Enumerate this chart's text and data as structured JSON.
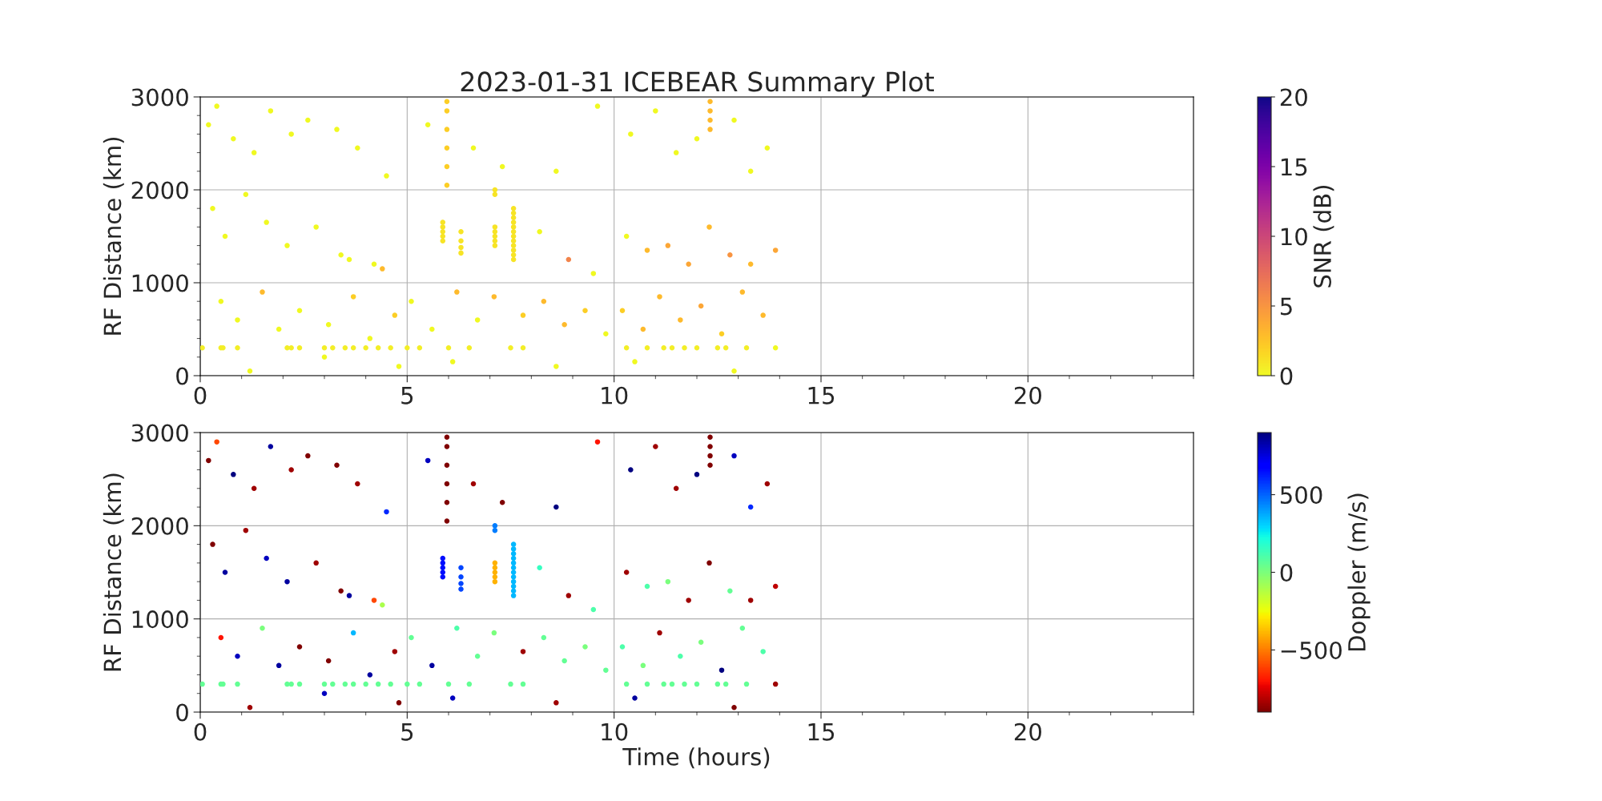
{
  "chart_data": [
    {
      "type": "scatter",
      "title": "2023-01-31 ICEBEAR Summary Plot",
      "ylabel": "RF Distance (km)",
      "clabel": "SNR (dB)",
      "clim": [
        0,
        20
      ],
      "cticks": [
        0,
        5,
        10,
        15,
        20
      ],
      "xlim": [
        0,
        24
      ],
      "xticks": [
        0,
        5,
        10,
        15,
        20
      ],
      "ylim": [
        0,
        3000
      ],
      "yticks": [
        0,
        1000,
        2000,
        3000
      ],
      "grid": true,
      "legend": false,
      "marker": "circle",
      "series": [
        {
          "x": [
            5.96,
            5.96,
            5.96,
            5.96,
            5.96,
            5.96,
            12.32,
            12.32,
            12.32,
            12.32,
            5.86,
            5.86,
            5.86,
            5.86,
            5.86,
            6.3,
            6.3,
            6.3,
            6.3,
            7.12,
            7.12,
            7.12,
            7.12,
            7.12,
            7.12,
            7.12,
            7.57,
            7.57,
            7.57,
            7.57,
            7.57,
            7.57,
            7.57,
            7.57,
            7.57,
            7.57,
            7.57,
            7.57,
            0.05,
            0.5,
            0.55,
            0.9,
            2.1,
            2.2,
            2.4,
            3.0,
            3.2,
            3.5,
            3.7,
            4.0,
            4.3,
            4.6,
            5.0,
            5.3,
            6.0,
            6.5,
            7.5,
            7.8,
            10.3,
            10.8,
            11.2,
            11.4,
            11.7,
            12.0,
            12.5,
            12.7,
            13.2,
            0.2,
            0.4,
            0.8,
            1.3,
            1.7,
            2.2,
            2.6,
            3.3,
            3.8,
            4.5,
            0.3,
            0.6,
            1.1,
            1.6,
            2.1,
            2.8,
            3.4,
            3.6,
            4.2,
            4.4,
            0.5,
            0.9,
            1.5,
            1.9,
            2.4,
            3.1,
            3.7,
            4.1,
            4.7,
            5.1,
            5.6,
            6.2,
            6.7,
            7.1,
            7.8,
            8.3,
            8.8,
            9.3,
            9.8,
            5.5,
            6.6,
            7.3,
            8.6,
            9.6,
            10.4,
            11.0,
            11.5,
            12.0,
            12.9,
            13.7,
            13.3,
            8.2,
            8.9,
            9.5,
            10.3,
            10.8,
            11.3,
            11.8,
            12.3,
            12.8,
            13.3,
            13.9,
            10.2,
            10.7,
            11.1,
            11.6,
            12.1,
            12.6,
            13.1,
            13.6,
            13.9,
            12.9,
            10.5,
            8.6,
            6.1,
            1.2,
            3.0,
            4.8
          ],
          "values": [
            2050,
            2250,
            2450,
            2650,
            2850,
            2950,
            2650,
            2750,
            2850,
            2950,
            1450,
            1500,
            1550,
            1600,
            1650,
            1320,
            1380,
            1450,
            1550,
            1400,
            1450,
            1500,
            1550,
            1600,
            1950,
            2000,
            1250,
            1300,
            1350,
            1400,
            1450,
            1500,
            1550,
            1600,
            1650,
            1700,
            1750,
            1800,
            300,
            300,
            300,
            300,
            300,
            300,
            300,
            300,
            300,
            300,
            300,
            300,
            300,
            300,
            300,
            300,
            300,
            300,
            300,
            300,
            300,
            300,
            300,
            300,
            300,
            300,
            300,
            300,
            300,
            2700,
            2900,
            2550,
            2400,
            2850,
            2600,
            2750,
            2650,
            2450,
            2150,
            1800,
            1500,
            1950,
            1650,
            1400,
            1600,
            1300,
            1250,
            1200,
            1150,
            800,
            600,
            900,
            500,
            700,
            550,
            850,
            400,
            650,
            800,
            500,
            900,
            600,
            850,
            650,
            800,
            550,
            700,
            450,
            2700,
            2450,
            2250,
            2200,
            2900,
            2600,
            2850,
            2400,
            2550,
            2750,
            2450,
            2200,
            1550,
            1250,
            1100,
            1500,
            1350,
            1400,
            1200,
            1600,
            1300,
            1200,
            1350,
            700,
            500,
            850,
            600,
            750,
            450,
            900,
            650,
            300,
            50,
            150,
            100,
            150,
            50,
            200,
            100
          ],
          "cvalues": [
            2,
            2,
            2,
            2,
            2,
            2,
            3,
            3,
            3,
            3,
            1,
            1,
            1,
            1,
            1,
            1,
            1,
            1,
            1,
            1,
            1,
            1,
            1,
            1,
            1,
            1,
            1,
            1,
            1,
            1,
            1,
            1,
            1,
            1,
            1,
            1,
            1,
            1,
            0.5,
            0.5,
            0.5,
            0.5,
            0.5,
            0.5,
            0.5,
            0.5,
            0.5,
            0.5,
            0.5,
            0.5,
            0.5,
            0.5,
            0.5,
            0.5,
            0.5,
            0.5,
            0.5,
            0.5,
            0.5,
            0.5,
            0.5,
            0.5,
            0.5,
            0.5,
            0.5,
            0.5,
            0.5,
            0,
            0,
            0,
            0,
            0,
            0,
            0,
            0,
            0,
            0,
            0,
            0,
            0,
            0,
            0,
            0,
            0,
            0,
            0,
            3,
            0,
            0,
            3,
            0,
            0,
            0,
            2,
            0,
            2,
            0,
            0,
            3,
            0,
            3,
            2,
            3,
            3,
            2,
            0,
            0,
            0,
            0,
            0,
            0,
            0,
            0,
            0,
            0,
            0,
            0,
            0,
            0,
            6,
            0,
            0,
            3,
            4,
            4,
            3,
            5,
            3,
            4,
            2,
            3,
            3,
            3,
            4,
            2,
            3,
            3,
            0,
            0,
            0,
            0,
            0,
            0,
            0,
            0
          ]
        }
      ]
    },
    {
      "type": "scatter",
      "xlabel": "Time (hours)",
      "ylabel": "RF Distance (km)",
      "clabel": "Doppler (m/s)",
      "clim": [
        -900,
        900
      ],
      "cticks": [
        {
          "value": -500,
          "label": "−500"
        },
        0,
        500
      ],
      "xlim": [
        0,
        24
      ],
      "xticks": [
        0,
        5,
        10,
        15,
        20
      ],
      "ylim": [
        0,
        3000
      ],
      "yticks": [
        0,
        1000,
        2000,
        3000
      ],
      "grid": true,
      "legend": false,
      "marker": "circle",
      "series": [
        {
          "x": [
            5.96,
            5.96,
            5.96,
            5.96,
            5.96,
            5.96,
            12.32,
            12.32,
            12.32,
            12.32,
            5.86,
            5.86,
            5.86,
            5.86,
            5.86,
            6.3,
            6.3,
            6.3,
            6.3,
            7.12,
            7.12,
            7.12,
            7.12,
            7.12,
            7.12,
            7.12,
            7.57,
            7.57,
            7.57,
            7.57,
            7.57,
            7.57,
            7.57,
            7.57,
            7.57,
            7.57,
            7.57,
            7.57,
            0.05,
            0.5,
            0.55,
            0.9,
            2.1,
            2.2,
            2.4,
            3.0,
            3.2,
            3.5,
            3.7,
            4.0,
            4.3,
            4.6,
            5.0,
            5.3,
            6.0,
            6.5,
            7.5,
            7.8,
            10.3,
            10.8,
            11.2,
            11.4,
            11.7,
            12.0,
            12.5,
            12.7,
            13.2,
            0.2,
            0.4,
            0.8,
            1.3,
            1.7,
            2.2,
            2.6,
            3.3,
            3.8,
            4.5,
            0.3,
            0.6,
            1.1,
            1.6,
            2.1,
            2.8,
            3.4,
            3.6,
            4.2,
            4.4,
            0.5,
            0.9,
            1.5,
            1.9,
            2.4,
            3.1,
            3.7,
            4.1,
            4.7,
            5.1,
            5.6,
            6.2,
            6.7,
            7.1,
            7.8,
            8.3,
            8.8,
            9.3,
            9.8,
            5.5,
            6.6,
            7.3,
            8.6,
            9.6,
            10.4,
            11.0,
            11.5,
            12.0,
            12.9,
            13.7,
            13.3,
            8.2,
            8.9,
            9.5,
            10.3,
            10.8,
            11.3,
            11.8,
            12.3,
            12.8,
            13.3,
            13.9,
            10.2,
            10.7,
            11.1,
            11.6,
            12.1,
            12.6,
            13.1,
            13.6,
            13.9,
            12.9,
            10.5,
            8.6,
            6.1,
            1.2,
            3.0,
            4.8
          ],
          "values": [
            2050,
            2250,
            2450,
            2650,
            2850,
            2950,
            2650,
            2750,
            2850,
            2950,
            1450,
            1500,
            1550,
            1600,
            1650,
            1320,
            1380,
            1450,
            1550,
            1400,
            1450,
            1500,
            1550,
            1600,
            1950,
            2000,
            1250,
            1300,
            1350,
            1400,
            1450,
            1500,
            1550,
            1600,
            1650,
            1700,
            1750,
            1800,
            300,
            300,
            300,
            300,
            300,
            300,
            300,
            300,
            300,
            300,
            300,
            300,
            300,
            300,
            300,
            300,
            300,
            300,
            300,
            300,
            300,
            300,
            300,
            300,
            300,
            300,
            300,
            300,
            300,
            2700,
            2900,
            2550,
            2400,
            2850,
            2600,
            2750,
            2650,
            2450,
            2150,
            1800,
            1500,
            1950,
            1650,
            1400,
            1600,
            1300,
            1250,
            1200,
            1150,
            800,
            600,
            900,
            500,
            700,
            550,
            850,
            400,
            650,
            800,
            500,
            900,
            600,
            850,
            650,
            800,
            550,
            700,
            450,
            2700,
            2450,
            2250,
            2200,
            2900,
            2600,
            2850,
            2400,
            2550,
            2750,
            2450,
            2200,
            1550,
            1250,
            1100,
            1500,
            1350,
            1400,
            1200,
            1600,
            1300,
            1200,
            1350,
            700,
            500,
            850,
            600,
            750,
            450,
            900,
            650,
            300,
            50,
            150,
            100,
            150,
            50,
            200,
            100
          ],
          "cvalues": [
            -900,
            -900,
            -900,
            -900,
            -900,
            -900,
            -900,
            -900,
            -900,
            -900,
            650,
            650,
            650,
            650,
            650,
            550,
            550,
            550,
            550,
            -400,
            -400,
            -400,
            -400,
            -400,
            450,
            450,
            350,
            350,
            350,
            350,
            350,
            350,
            350,
            350,
            350,
            350,
            350,
            350,
            50,
            50,
            50,
            50,
            50,
            50,
            50,
            50,
            50,
            50,
            50,
            50,
            50,
            50,
            50,
            50,
            50,
            50,
            50,
            50,
            50,
            50,
            50,
            50,
            50,
            50,
            50,
            50,
            50,
            -900,
            -600,
            900,
            -850,
            850,
            -850,
            -900,
            -900,
            -850,
            600,
            -900,
            850,
            -850,
            800,
            850,
            -850,
            -900,
            850,
            -600,
            -100,
            -700,
            800,
            0,
            850,
            -900,
            -900,
            350,
            850,
            -850,
            50,
            850,
            100,
            50,
            0,
            -850,
            50,
            50,
            0,
            50,
            800,
            -850,
            -900,
            900,
            -700,
            900,
            -850,
            -850,
            900,
            800,
            -850,
            600,
            150,
            -850,
            100,
            -850,
            100,
            0,
            -850,
            -900,
            50,
            -850,
            -800,
            100,
            0,
            -850,
            100,
            0,
            900,
            50,
            100,
            -850,
            -900,
            850,
            -850,
            800,
            -850,
            800,
            -900
          ]
        }
      ]
    }
  ]
}
